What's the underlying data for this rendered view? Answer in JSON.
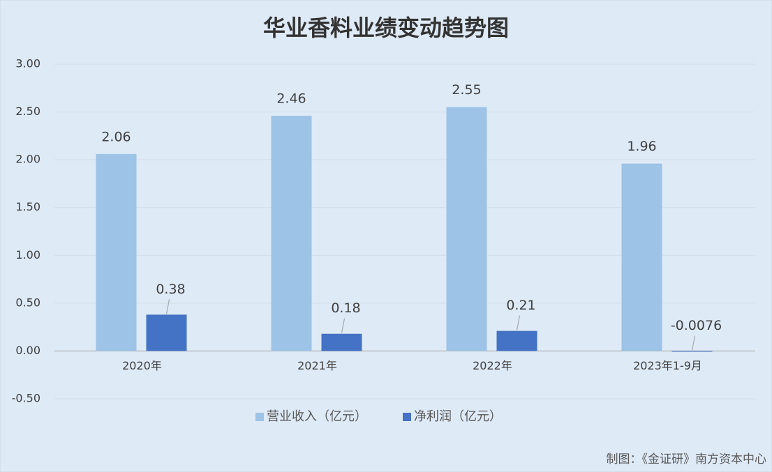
{
  "chart_data": {
    "type": "bar",
    "title": "华业香料业绩变动趋势图",
    "categories": [
      "2020年",
      "2021年",
      "2022年",
      "2023年1-9月"
    ],
    "series": [
      {
        "name": "营业收入（亿元）",
        "color": "#9dc3e6",
        "values": [
          2.06,
          2.46,
          2.55,
          1.96
        ]
      },
      {
        "name": "净利润（亿元）",
        "color": "#4472c4",
        "values": [
          0.38,
          0.18,
          0.21,
          -0.0076
        ]
      }
    ],
    "ylim": [
      -0.5,
      3.0
    ],
    "yticks": [
      {
        "value": -0.5,
        "label": "-0.50"
      },
      {
        "value": 0,
        "label": "0.00"
      },
      {
        "value": 0.5,
        "label": "0.50"
      },
      {
        "value": 1,
        "label": "1.00"
      },
      {
        "value": 1.5,
        "label": "1.50"
      },
      {
        "value": 2,
        "label": "2.00"
      },
      {
        "value": 2.5,
        "label": "2.50"
      },
      {
        "value": 3,
        "label": "3.00"
      }
    ],
    "grid": true,
    "legend": "bottom",
    "source": "制图：《金证研》南方资本中心"
  }
}
